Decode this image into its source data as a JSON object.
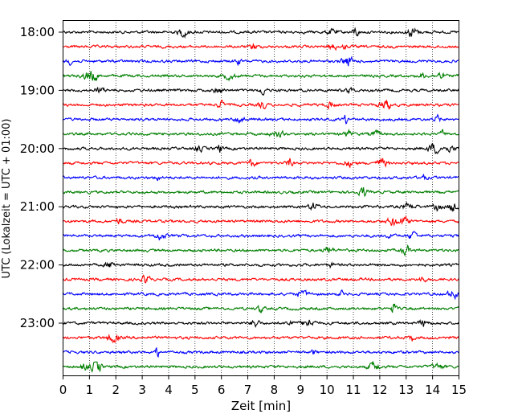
{
  "chart_data": {
    "type": "line",
    "xlabel": "Zeit  [min]",
    "ylabel": "UTC (Lokalzeit = UTC + 01:00)",
    "xlim": [
      0,
      15
    ],
    "x_ticks": [
      "0",
      "1",
      "2",
      "3",
      "4",
      "5",
      "6",
      "7",
      "8",
      "9",
      "10",
      "11",
      "12",
      "13",
      "14",
      "15"
    ],
    "y_tick_labels": [
      "18:00",
      "19:00",
      "20:00",
      "21:00",
      "22:00",
      "23:00"
    ],
    "grid": "vertical-dotted",
    "trace_colors": [
      "#000000",
      "#ff0000",
      "#0000ff",
      "#007f00"
    ],
    "trace_count": 24,
    "trace_interval_minutes": 15,
    "start_time": "18:00"
  }
}
